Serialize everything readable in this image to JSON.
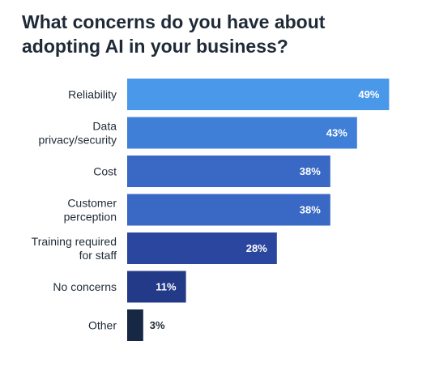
{
  "chart_data": {
    "type": "bar",
    "orientation": "horizontal",
    "title": "What concerns do you have about adopting AI in your business?",
    "categories": [
      [
        "Reliability"
      ],
      [
        "Data",
        "privacy/security"
      ],
      [
        "Cost"
      ],
      [
        "Customer",
        "perception"
      ],
      [
        "Training required",
        "for staff"
      ],
      [
        "No concerns"
      ],
      [
        "Other"
      ]
    ],
    "values": [
      49,
      43,
      38,
      38,
      28,
      11,
      3
    ],
    "value_labels": [
      "49%",
      "43%",
      "38%",
      "38%",
      "28%",
      "11%",
      "3%"
    ],
    "bar_colors": [
      "#4a98ea",
      "#3f7fd8",
      "#3968c5",
      "#3968c5",
      "#2b469f",
      "#233a89",
      "#172844"
    ],
    "value_label_colors": [
      "#ffffff",
      "#ffffff",
      "#ffffff",
      "#ffffff",
      "#ffffff",
      "#ffffff",
      "#1f2a37"
    ],
    "xlim": [
      0,
      50
    ],
    "grid": false,
    "legend": false
  }
}
